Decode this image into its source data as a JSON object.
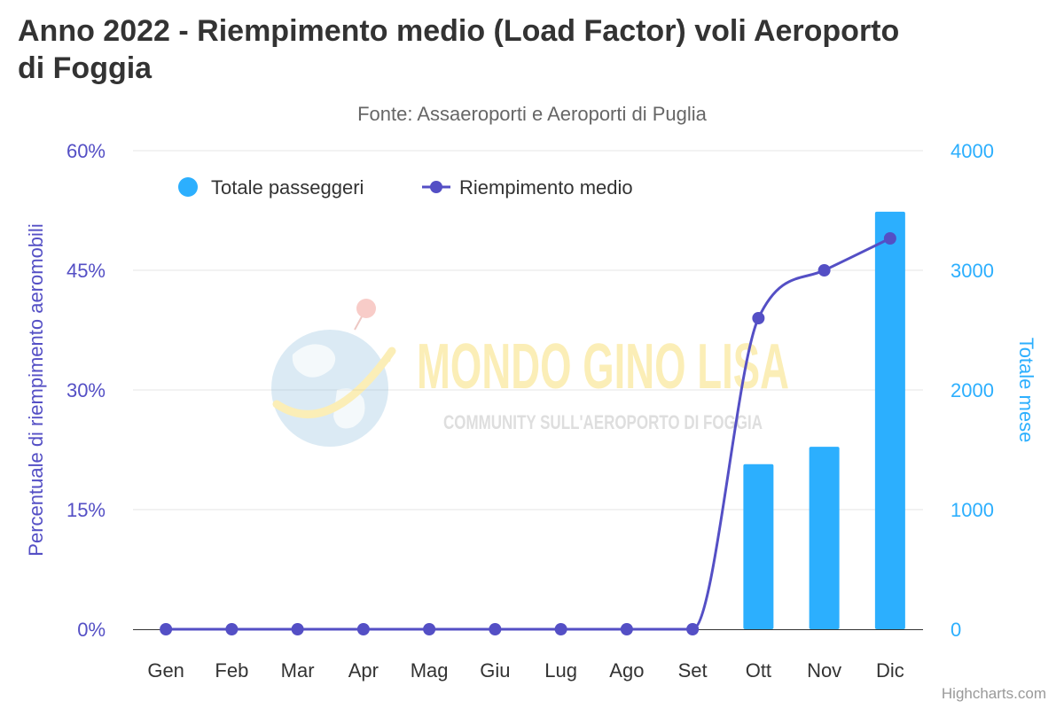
{
  "chart_data": {
    "type": "bar",
    "title": "Anno 2022 - Riempimento medio (Load Factor) voli Aeroporto di Foggia",
    "subtitle": "Fonte: Assaeroporti e Aeroporti di Puglia",
    "categories": [
      "Gen",
      "Feb",
      "Mar",
      "Apr",
      "Mag",
      "Giu",
      "Lug",
      "Ago",
      "Set",
      "Ott",
      "Nov",
      "Dic"
    ],
    "series": [
      {
        "name": "Totale passeggeri",
        "type": "bar",
        "axis": "right",
        "color": "#2caffe",
        "values": [
          0,
          0,
          0,
          0,
          0,
          0,
          0,
          0,
          0,
          1380,
          1525,
          3490
        ]
      },
      {
        "name": "Riempimento medio",
        "type": "line",
        "axis": "left",
        "color": "#544fc5",
        "values": [
          0,
          0,
          0,
          0,
          0,
          0,
          0,
          0,
          0,
          39,
          45,
          49
        ]
      }
    ],
    "y_left": {
      "label": "Percentuale di riempimento aeromobili",
      "min": 0,
      "max": 60,
      "ticks": [
        "0%",
        "15%",
        "30%",
        "45%",
        "60%"
      ],
      "color": "#544fc5"
    },
    "y_right": {
      "label": "Totale mese",
      "min": 0,
      "max": 4000,
      "ticks": [
        "0",
        "1000",
        "2000",
        "3000",
        "4000"
      ],
      "color": "#2caffe"
    },
    "grid": true,
    "legend_position": "top-left"
  },
  "watermark": {
    "brand": "MONDO GINO LISA",
    "tagline": "COMMUNITY SULL'AEROPORTO DI FOGGIA"
  },
  "credits": "Highcharts.com"
}
